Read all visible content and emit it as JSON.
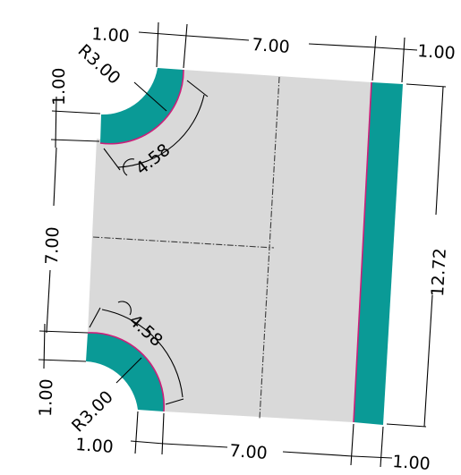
{
  "colors": {
    "background": "#ffffff",
    "panel_fill": "#d9d9d9",
    "strip_fill": "#0a9a96",
    "bend_line": "#cc1f7a",
    "dimension_line": "#000000"
  },
  "dimensions": {
    "top_left_flange": "1.00",
    "top_length": "7.00",
    "top_right_flange": "1.00",
    "top_left_vertical": "1.00",
    "top_radius": "R3.00",
    "top_arc_length": "4.58",
    "left_length": "7.00",
    "right_height": "12.72",
    "bottom_arc_length": "4.58",
    "bottom_left_vertical": "1.00",
    "bottom_radius": "R3.00",
    "bottom_left_flange": "1.00",
    "bottom_length": "7.00",
    "bottom_right_flange": "1.00"
  }
}
